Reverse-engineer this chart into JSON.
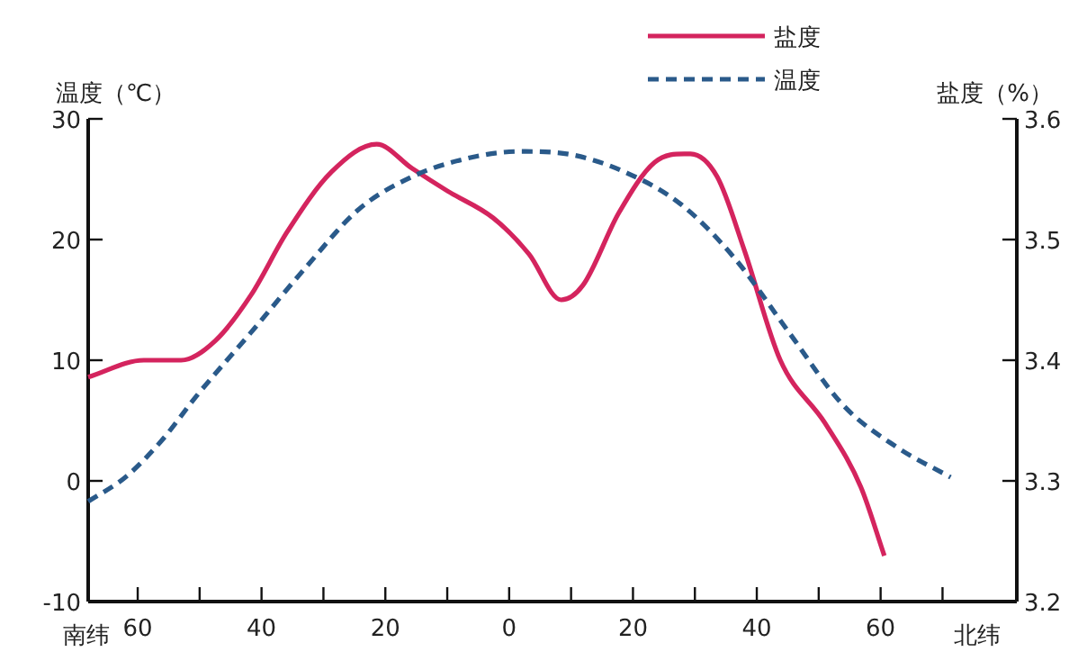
{
  "chart_data": {
    "type": "line",
    "ylabel": "温度（℃）",
    "y2label": "盐度（%）",
    "annotations": [
      "南纬",
      "北纬"
    ],
    "xlim": [
      -68,
      82
    ],
    "xticks": [
      {
        "value": -60,
        "label": "60"
      },
      {
        "value": -50,
        "label": null
      },
      {
        "value": -40,
        "label": "40"
      },
      {
        "value": -30,
        "label": null
      },
      {
        "value": -20,
        "label": "20"
      },
      {
        "value": -10,
        "label": null
      },
      0,
      {
        "value": 10,
        "label": null
      },
      20,
      {
        "value": 30,
        "label": null
      },
      40,
      {
        "value": 50,
        "label": null
      },
      60,
      {
        "value": 70,
        "label": null
      }
    ],
    "ylim": [
      -10,
      30
    ],
    "yticks": [
      -10,
      0,
      10,
      20,
      30
    ],
    "y2lim": [
      3.2,
      3.6
    ],
    "y2ticks": [
      3.2,
      3.3,
      3.4,
      3.5,
      3.6
    ],
    "legend": "top right",
    "series": [
      {
        "name": "盐度",
        "color": "#d4245e",
        "axis": "y2",
        "line_style": "solid",
        "x": [
          -68,
          -59,
          -53,
          -47.5,
          -41.7,
          -35.9,
          -28.7,
          -21.4,
          -15.7,
          -9.9,
          -2.6,
          3.2,
          8.4,
          11.9,
          17.7,
          23.5,
          29.3,
          33.6,
          38,
          43.8,
          51,
          56.8,
          60.6
        ],
        "values": [
          3.386,
          3.4,
          3.4,
          3.416,
          3.454,
          3.506,
          3.556,
          3.579,
          3.559,
          3.54,
          3.518,
          3.488,
          3.45,
          3.462,
          3.522,
          3.564,
          3.571,
          3.552,
          3.491,
          3.4,
          3.348,
          3.295,
          3.238
        ]
      },
      {
        "name": "温度",
        "color": "#2a5a8a",
        "axis": "y",
        "line_style": "dashed",
        "x": [
          -68,
          -62,
          -56.2,
          -50.4,
          -41.7,
          -33,
          -24.3,
          -15.7,
          -7,
          1.7,
          10.4,
          19.1,
          27.8,
          36.5,
          45.2,
          53.9,
          62.6,
          71.3
        ],
        "values": [
          -1.7,
          0.3,
          3.3,
          7.1,
          12.3,
          17.6,
          22.5,
          25.2,
          26.7,
          27.3,
          27,
          25.5,
          22.9,
          18.4,
          12.3,
          6.3,
          2.8,
          0.3
        ]
      }
    ]
  }
}
